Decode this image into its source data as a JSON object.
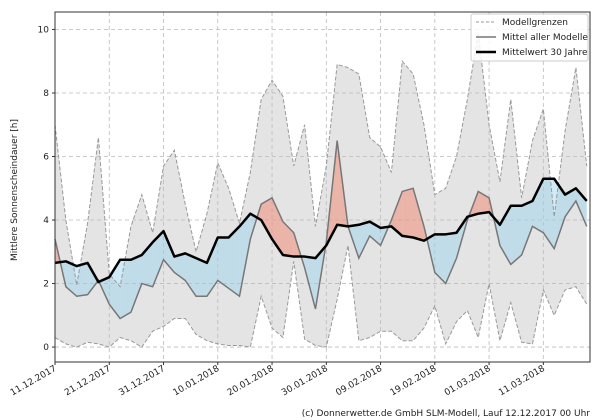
{
  "chart_data": {
    "type": "area",
    "title": "",
    "xlabel": "",
    "ylabel": "Mittlere Sonnenscheindauer [h]",
    "ylim": [
      -0.47,
      10.55
    ],
    "xlim_days": [
      0,
      98.6
    ],
    "grid": true,
    "legend_position": "top-right",
    "x_days": [
      0,
      2,
      4,
      6,
      8,
      10,
      12,
      14,
      16,
      18,
      20,
      22,
      24,
      26,
      28,
      30,
      32,
      34,
      36,
      38,
      40,
      42,
      44,
      46,
      48,
      50,
      52,
      54,
      56,
      58,
      60,
      62,
      64,
      66,
      68,
      70,
      72,
      74,
      76,
      78,
      80,
      82,
      84,
      86,
      88,
      90,
      92,
      94,
      96,
      98
    ],
    "x_ticks": [
      {
        "day": 0,
        "label": "11.12.2017"
      },
      {
        "day": 10,
        "label": "21.12.2017"
      },
      {
        "day": 20,
        "label": "31.12.2017"
      },
      {
        "day": 30,
        "label": "10.01.2018"
      },
      {
        "day": 40,
        "label": "20.01.2018"
      },
      {
        "day": 50,
        "label": "30.01.2018"
      },
      {
        "day": 60,
        "label": "09.02.2018"
      },
      {
        "day": 70,
        "label": "19.02.2018"
      },
      {
        "day": 80,
        "label": "01.03.2018"
      },
      {
        "day": 90,
        "label": "11.03.2018"
      }
    ],
    "y_ticks": [
      {
        "v": 0,
        "label": "0"
      },
      {
        "v": 2,
        "label": "2"
      },
      {
        "v": 4,
        "label": "4"
      },
      {
        "v": 6,
        "label": "6"
      },
      {
        "v": 8,
        "label": "8"
      },
      {
        "v": 10,
        "label": "10"
      }
    ],
    "series": [
      {
        "name": "Modellgrenzen (oben)",
        "values": [
          7.0,
          4.0,
          1.95,
          3.9,
          6.6,
          2.3,
          1.9,
          3.8,
          4.8,
          3.6,
          5.7,
          6.2,
          4.5,
          3.0,
          4.2,
          5.8,
          5.0,
          3.9,
          5.5,
          7.8,
          8.4,
          7.9,
          5.7,
          7.0,
          3.8,
          5.7,
          8.9,
          8.8,
          8.6,
          6.6,
          6.3,
          5.5,
          9.0,
          8.6,
          7.0,
          4.8,
          5.0,
          6.0,
          7.8,
          9.9,
          7.0,
          5.2,
          7.8,
          4.7,
          6.5,
          7.5,
          4.1,
          6.8,
          8.8,
          5.7
        ]
      },
      {
        "name": "Modellgrenzen (unten)",
        "values": [
          0.3,
          0.1,
          0.0,
          0.15,
          0.1,
          0.0,
          0.3,
          0.2,
          0.0,
          0.5,
          0.65,
          0.9,
          0.9,
          0.4,
          0.2,
          0.1,
          0.05,
          0.05,
          0.0,
          1.6,
          0.6,
          0.3,
          2.7,
          0.25,
          0.05,
          0.0,
          1.5,
          3.2,
          0.2,
          0.3,
          0.5,
          0.5,
          0.2,
          0.2,
          0.6,
          1.3,
          0.1,
          0.8,
          1.15,
          0.3,
          2.0,
          0.2,
          1.4,
          0.15,
          0.1,
          1.8,
          1.0,
          1.8,
          1.9,
          1.35
        ]
      },
      {
        "name": "Mittel aller Modelle",
        "values": [
          3.4,
          1.9,
          1.6,
          1.65,
          2.1,
          1.35,
          0.9,
          1.1,
          2.0,
          1.9,
          2.75,
          2.35,
          2.1,
          1.6,
          1.6,
          2.1,
          1.85,
          1.6,
          3.4,
          4.5,
          4.7,
          3.95,
          3.6,
          2.5,
          1.2,
          3.3,
          6.5,
          3.8,
          2.8,
          3.5,
          3.2,
          4.0,
          4.9,
          5.0,
          3.8,
          2.35,
          2.0,
          2.8,
          4.0,
          4.9,
          4.7,
          3.2,
          2.6,
          2.9,
          3.8,
          3.6,
          3.1,
          4.1,
          4.6,
          3.8
        ]
      },
      {
        "name": "Mittelwert 30 Jahre",
        "values": [
          2.65,
          2.7,
          2.55,
          2.65,
          2.05,
          2.2,
          2.75,
          2.75,
          2.9,
          3.3,
          3.65,
          2.85,
          2.95,
          2.8,
          2.65,
          3.45,
          3.45,
          3.8,
          4.2,
          4.0,
          3.4,
          2.9,
          2.85,
          2.85,
          2.8,
          3.2,
          3.85,
          3.8,
          3.85,
          3.95,
          3.75,
          3.8,
          3.5,
          3.45,
          3.35,
          3.55,
          3.55,
          3.6,
          4.1,
          4.2,
          4.25,
          3.85,
          4.45,
          4.45,
          4.6,
          5.3,
          5.3,
          4.8,
          5.0,
          4.6
        ]
      }
    ],
    "legend": [
      "Modellgrenzen",
      "Mittel aller Modelle",
      "Mittelwert 30 Jahre"
    ],
    "colors": {
      "band": "#e4e4e4",
      "bounds": "#999999",
      "mean": "#777777",
      "climate": "#000000",
      "above": "rgba(240,140,120,0.55)",
      "below": "rgba(150,210,240,0.45)"
    }
  },
  "footer": "(c) Donnerwetter.de GmbH SLM-Modell, Lauf 12.12.2017 00 Uhr"
}
